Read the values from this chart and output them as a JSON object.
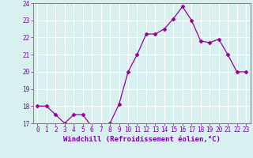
{
  "x": [
    0,
    1,
    2,
    3,
    4,
    5,
    6,
    7,
    8,
    9,
    10,
    11,
    12,
    13,
    14,
    15,
    16,
    17,
    18,
    19,
    20,
    21,
    22,
    23
  ],
  "y": [
    18,
    18,
    17.5,
    17,
    17.5,
    17.5,
    16.8,
    16.6,
    17,
    18.1,
    20,
    21,
    22.2,
    22.2,
    22.5,
    23.1,
    23.8,
    23,
    21.8,
    21.7,
    21.9,
    21,
    20,
    20
  ],
  "line_color": "#990099",
  "marker": "D",
  "marker_size": 2.5,
  "bg_color": "#d8f0f0",
  "grid_color": "#ffffff",
  "xlabel": "Windchill (Refroidissement éolien,°C)",
  "xlabel_color": "#7700aa",
  "tick_color": "#7700aa",
  "spine_color": "#888888",
  "ylim": [
    17,
    24
  ],
  "xlim": [
    -0.5,
    23.5
  ],
  "yticks": [
    17,
    18,
    19,
    20,
    21,
    22,
    23,
    24
  ],
  "xticks": [
    0,
    1,
    2,
    3,
    4,
    5,
    6,
    7,
    8,
    9,
    10,
    11,
    12,
    13,
    14,
    15,
    16,
    17,
    18,
    19,
    20,
    21,
    22,
    23
  ],
  "tick_fontsize": 5.5,
  "xlabel_fontsize": 6.5
}
